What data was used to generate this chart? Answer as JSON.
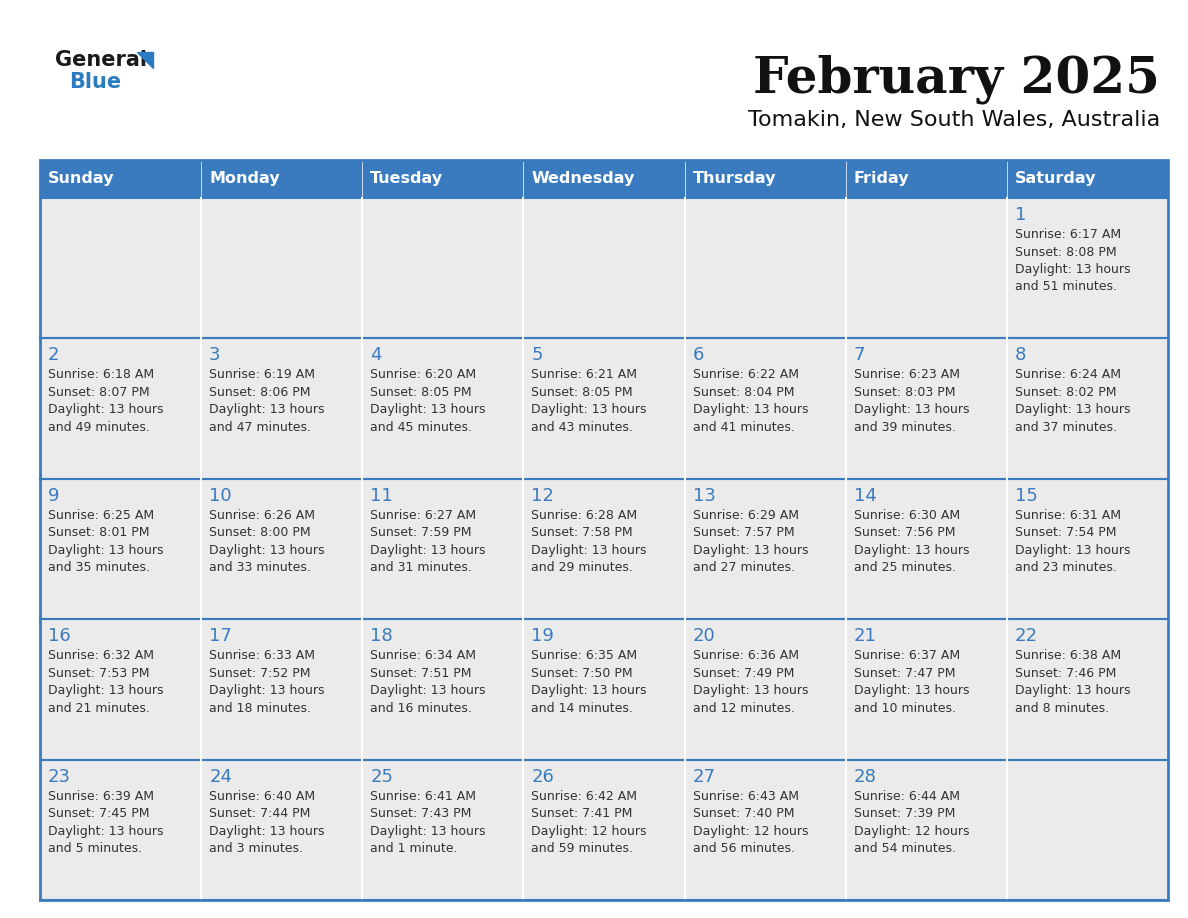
{
  "title": "February 2025",
  "subtitle": "Tomakin, New South Wales, Australia",
  "header_color": "#3a7bbf",
  "header_text_color": "#ffffff",
  "cell_bg_color": "#ebebeb",
  "cell_bg_has_data": "#ebebeb",
  "border_color": "#3a7bbf",
  "row_border_color": "#3a7bbf",
  "col_border_color": "#ffffff",
  "days_of_week": [
    "Sunday",
    "Monday",
    "Tuesday",
    "Wednesday",
    "Thursday",
    "Friday",
    "Saturday"
  ],
  "background_color": "#ffffff",
  "day_number_color": "#3a7bbf",
  "cell_text_color": "#333333",
  "logo_general_color": "#1a1a1a",
  "logo_blue_color": "#2a7bbf",
  "calendar_data": [
    [
      null,
      null,
      null,
      null,
      null,
      null,
      {
        "day": 1,
        "sunrise": "6:17 AM",
        "sunset": "8:08 PM",
        "daylight": "13 hours",
        "daylight2": "and 51 minutes."
      }
    ],
    [
      {
        "day": 2,
        "sunrise": "6:18 AM",
        "sunset": "8:07 PM",
        "daylight": "13 hours",
        "daylight2": "and 49 minutes."
      },
      {
        "day": 3,
        "sunrise": "6:19 AM",
        "sunset": "8:06 PM",
        "daylight": "13 hours",
        "daylight2": "and 47 minutes."
      },
      {
        "day": 4,
        "sunrise": "6:20 AM",
        "sunset": "8:05 PM",
        "daylight": "13 hours",
        "daylight2": "and 45 minutes."
      },
      {
        "day": 5,
        "sunrise": "6:21 AM",
        "sunset": "8:05 PM",
        "daylight": "13 hours",
        "daylight2": "and 43 minutes."
      },
      {
        "day": 6,
        "sunrise": "6:22 AM",
        "sunset": "8:04 PM",
        "daylight": "13 hours",
        "daylight2": "and 41 minutes."
      },
      {
        "day": 7,
        "sunrise": "6:23 AM",
        "sunset": "8:03 PM",
        "daylight": "13 hours",
        "daylight2": "and 39 minutes."
      },
      {
        "day": 8,
        "sunrise": "6:24 AM",
        "sunset": "8:02 PM",
        "daylight": "13 hours",
        "daylight2": "and 37 minutes."
      }
    ],
    [
      {
        "day": 9,
        "sunrise": "6:25 AM",
        "sunset": "8:01 PM",
        "daylight": "13 hours",
        "daylight2": "and 35 minutes."
      },
      {
        "day": 10,
        "sunrise": "6:26 AM",
        "sunset": "8:00 PM",
        "daylight": "13 hours",
        "daylight2": "and 33 minutes."
      },
      {
        "day": 11,
        "sunrise": "6:27 AM",
        "sunset": "7:59 PM",
        "daylight": "13 hours",
        "daylight2": "and 31 minutes."
      },
      {
        "day": 12,
        "sunrise": "6:28 AM",
        "sunset": "7:58 PM",
        "daylight": "13 hours",
        "daylight2": "and 29 minutes."
      },
      {
        "day": 13,
        "sunrise": "6:29 AM",
        "sunset": "7:57 PM",
        "daylight": "13 hours",
        "daylight2": "and 27 minutes."
      },
      {
        "day": 14,
        "sunrise": "6:30 AM",
        "sunset": "7:56 PM",
        "daylight": "13 hours",
        "daylight2": "and 25 minutes."
      },
      {
        "day": 15,
        "sunrise": "6:31 AM",
        "sunset": "7:54 PM",
        "daylight": "13 hours",
        "daylight2": "and 23 minutes."
      }
    ],
    [
      {
        "day": 16,
        "sunrise": "6:32 AM",
        "sunset": "7:53 PM",
        "daylight": "13 hours",
        "daylight2": "and 21 minutes."
      },
      {
        "day": 17,
        "sunrise": "6:33 AM",
        "sunset": "7:52 PM",
        "daylight": "13 hours",
        "daylight2": "and 18 minutes."
      },
      {
        "day": 18,
        "sunrise": "6:34 AM",
        "sunset": "7:51 PM",
        "daylight": "13 hours",
        "daylight2": "and 16 minutes."
      },
      {
        "day": 19,
        "sunrise": "6:35 AM",
        "sunset": "7:50 PM",
        "daylight": "13 hours",
        "daylight2": "and 14 minutes."
      },
      {
        "day": 20,
        "sunrise": "6:36 AM",
        "sunset": "7:49 PM",
        "daylight": "13 hours",
        "daylight2": "and 12 minutes."
      },
      {
        "day": 21,
        "sunrise": "6:37 AM",
        "sunset": "7:47 PM",
        "daylight": "13 hours",
        "daylight2": "and 10 minutes."
      },
      {
        "day": 22,
        "sunrise": "6:38 AM",
        "sunset": "7:46 PM",
        "daylight": "13 hours",
        "daylight2": "and 8 minutes."
      }
    ],
    [
      {
        "day": 23,
        "sunrise": "6:39 AM",
        "sunset": "7:45 PM",
        "daylight": "13 hours",
        "daylight2": "and 5 minutes."
      },
      {
        "day": 24,
        "sunrise": "6:40 AM",
        "sunset": "7:44 PM",
        "daylight": "13 hours",
        "daylight2": "and 3 minutes."
      },
      {
        "day": 25,
        "sunrise": "6:41 AM",
        "sunset": "7:43 PM",
        "daylight": "13 hours",
        "daylight2": "and 1 minute."
      },
      {
        "day": 26,
        "sunrise": "6:42 AM",
        "sunset": "7:41 PM",
        "daylight": "12 hours",
        "daylight2": "and 59 minutes."
      },
      {
        "day": 27,
        "sunrise": "6:43 AM",
        "sunset": "7:40 PM",
        "daylight": "12 hours",
        "daylight2": "and 56 minutes."
      },
      {
        "day": 28,
        "sunrise": "6:44 AM",
        "sunset": "7:39 PM",
        "daylight": "12 hours",
        "daylight2": "and 54 minutes."
      },
      null
    ]
  ]
}
